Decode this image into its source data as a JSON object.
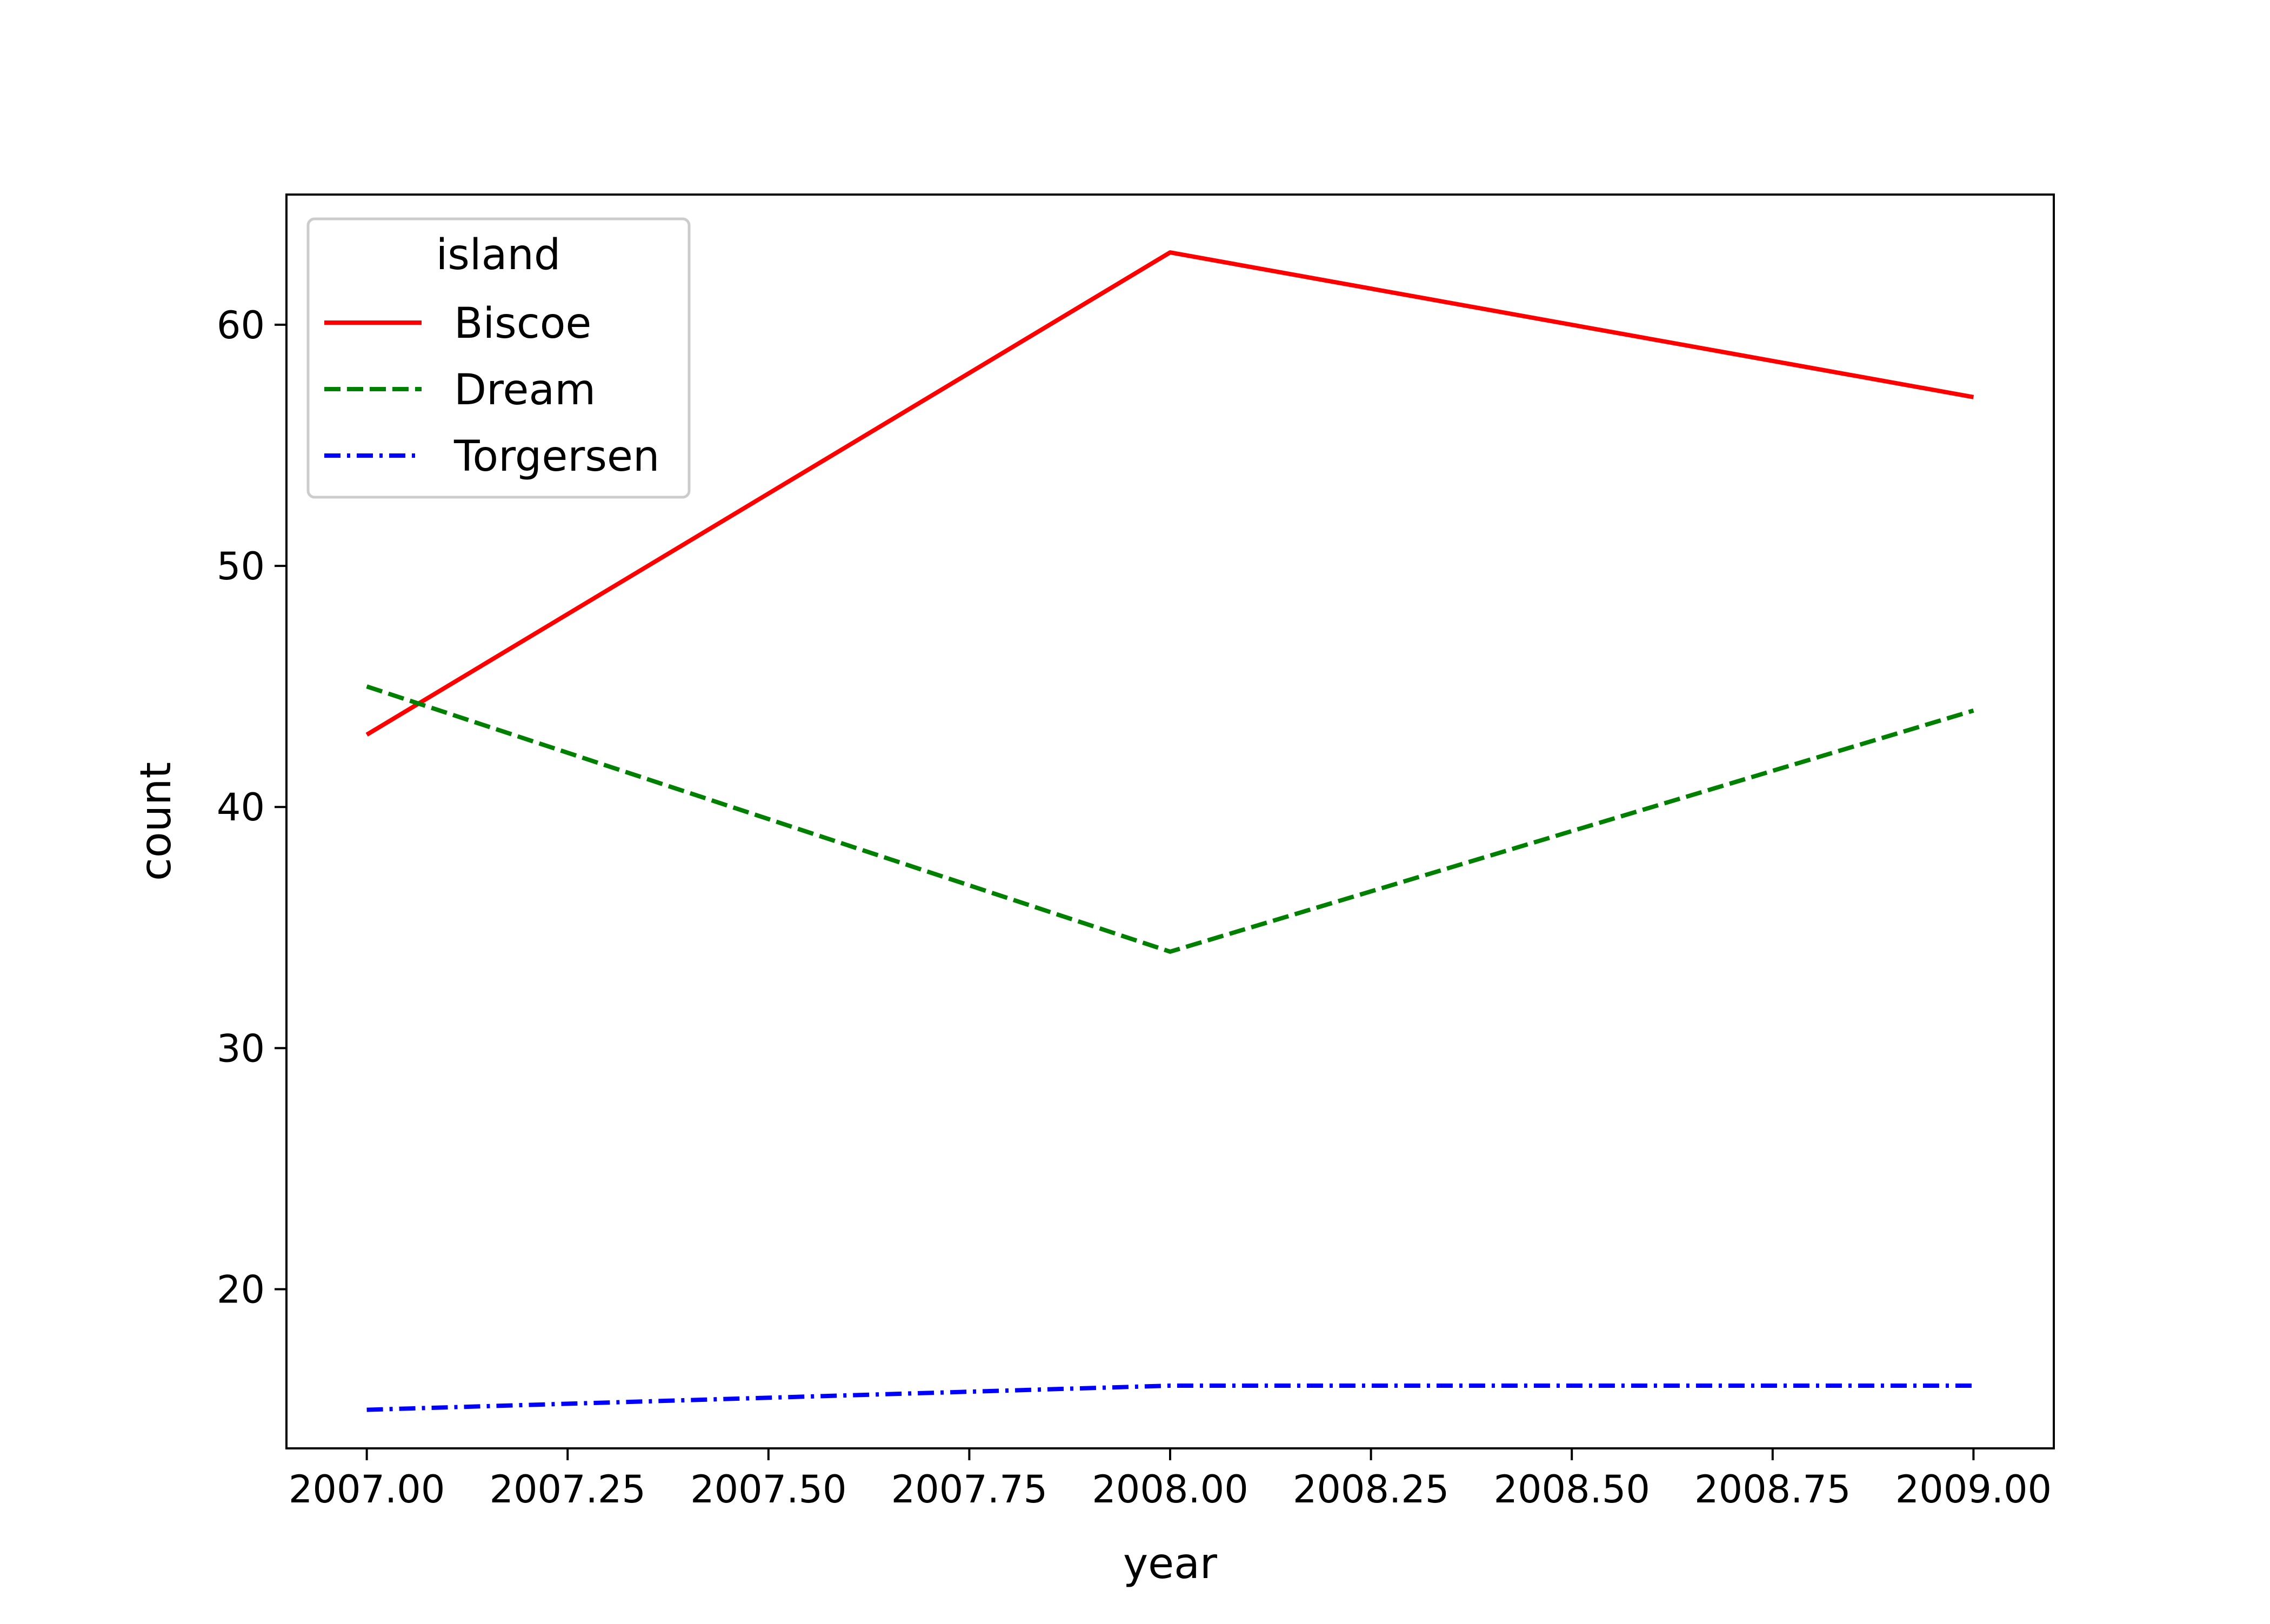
{
  "chart_data": {
    "type": "line",
    "title": "",
    "xlabel": "year",
    "ylabel": "count",
    "x": [
      2007,
      2008,
      2009
    ],
    "xlim": [
      2006.9,
      2009.1
    ],
    "ylim": [
      13.4,
      65.4
    ],
    "xticks": [
      2007.0,
      2007.25,
      2007.5,
      2007.75,
      2008.0,
      2008.25,
      2008.5,
      2008.75,
      2009.0
    ],
    "xtick_labels": [
      "2007.00",
      "2007.25",
      "2007.50",
      "2007.75",
      "2008.00",
      "2008.25",
      "2008.50",
      "2008.75",
      "2009.00"
    ],
    "yticks": [
      20,
      30,
      40,
      50,
      60
    ],
    "ytick_labels": [
      "20",
      "30",
      "40",
      "50",
      "60"
    ],
    "grid": false,
    "legend": {
      "title": "island",
      "placement": "upper-left"
    },
    "series": [
      {
        "name": "Biscoe",
        "values": [
          43,
          63,
          57
        ],
        "color": "#ff0000",
        "style": "solid"
      },
      {
        "name": "Dream",
        "values": [
          45,
          34,
          44
        ],
        "color": "#008000",
        "style": "dashed"
      },
      {
        "name": "Torgersen",
        "values": [
          15,
          16,
          16
        ],
        "color": "#0000ff",
        "style": "dashdot"
      }
    ]
  }
}
